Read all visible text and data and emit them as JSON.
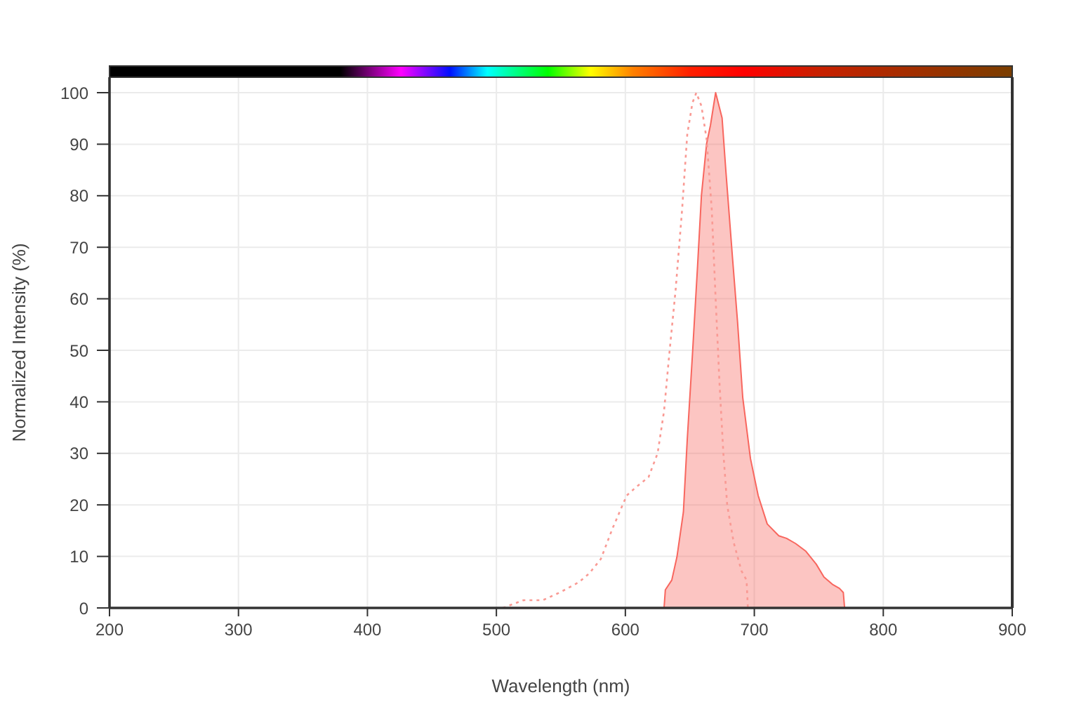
{
  "chart_data": {
    "type": "area",
    "xlabel": "Wavelength (nm)",
    "ylabel": "Normalized Intensity (%)",
    "xlim": [
      200,
      900
    ],
    "ylim": [
      0,
      103
    ],
    "xticks": [
      200,
      300,
      400,
      500,
      600,
      700,
      800,
      900
    ],
    "yticks": [
      0,
      10,
      20,
      30,
      40,
      50,
      60,
      70,
      80,
      90,
      100
    ],
    "grid": true,
    "series": [
      {
        "type": "line",
        "line_style": "dotted",
        "color": "#f99a94",
        "x": [
          505,
          521,
          536,
          550,
          564,
          572,
          581,
          590,
          601,
          609,
          618,
          625,
          630,
          634,
          639,
          644,
          648,
          652,
          655,
          659,
          663,
          667,
          670,
          673,
          676,
          679,
          684,
          690,
          694,
          695
        ],
        "values": [
          0,
          1.5,
          1.5,
          3.1,
          5,
          6.7,
          9.5,
          15.4,
          21.8,
          23.6,
          25.4,
          30,
          38.2,
          49.1,
          61.8,
          77.3,
          91.9,
          98,
          100,
          97.4,
          91,
          77.3,
          60,
          43.6,
          30,
          19.9,
          12.7,
          7.2,
          5.4,
          0
        ]
      },
      {
        "line_style": "solid",
        "color": "#f8665e",
        "x": [
          630,
          631,
          636,
          640,
          645,
          648,
          652,
          656,
          659,
          663,
          666,
          670,
          675,
          678,
          683,
          687,
          691,
          697,
          703,
          710,
          719,
          725,
          732,
          740,
          748,
          754,
          761,
          766,
          769,
          770
        ],
        "values": [
          0,
          3.5,
          5.4,
          9.9,
          18.6,
          32.7,
          49.1,
          66.4,
          80.1,
          90.1,
          93.7,
          100,
          95.1,
          84.6,
          68.2,
          55.5,
          40.9,
          29,
          21.8,
          16.3,
          14,
          13.5,
          12.5,
          11,
          8.5,
          6,
          4.5,
          3.8,
          3,
          0
        ]
      }
    ]
  }
}
